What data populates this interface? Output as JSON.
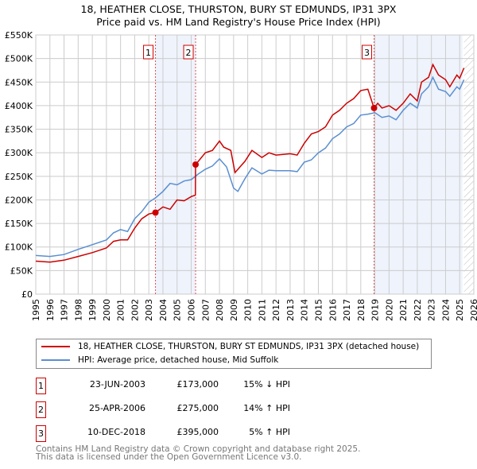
{
  "title": "18, HEATHER CLOSE, THURSTON, BURY ST EDMUNDS, IP31 3PX",
  "subtitle": "Price paid vs. HM Land Registry's House Price Index (HPI)",
  "chart_data": {
    "type": "line",
    "xlim": [
      1995,
      2026
    ],
    "ylim": [
      0,
      550000
    ],
    "yticks": [
      0,
      50000,
      100000,
      150000,
      200000,
      250000,
      300000,
      350000,
      400000,
      450000,
      500000,
      550000
    ],
    "ytick_labels": [
      "£0",
      "£50K",
      "£100K",
      "£150K",
      "£200K",
      "£250K",
      "£300K",
      "£350K",
      "£400K",
      "£450K",
      "£500K",
      "£550K"
    ],
    "xticks": [
      "1995",
      "1996",
      "1997",
      "1998",
      "1999",
      "2000",
      "2001",
      "2002",
      "2003",
      "2004",
      "2005",
      "2006",
      "2007",
      "2008",
      "2009",
      "2010",
      "2011",
      "2012",
      "2013",
      "2014",
      "2015",
      "2016",
      "2017",
      "2018",
      "2019",
      "2020",
      "2021",
      "2022",
      "2023",
      "2024",
      "2025",
      "2026"
    ],
    "grid": true,
    "colors": {
      "property": "#cc0000",
      "hpi": "#5b8fd0",
      "shade": "#eef3fc"
    },
    "shaded_ranges": [
      [
        2003.47,
        2006.31
      ],
      [
        2018.94,
        2025.2
      ]
    ],
    "hatched_from": 2025.3,
    "series": [
      {
        "name": "18, HEATHER CLOSE, THURSTON, BURY ST EDMUNDS, IP31 3PX (detached house)",
        "x": [
          1995,
          1996,
          1997,
          1998,
          1999,
          2000,
          2000.5,
          2001,
          2001.5,
          2002,
          2002.5,
          2003,
          2003.47,
          2004,
          2004.5,
          2005,
          2005.5,
          2006,
          2006.3,
          2006.31,
          2007,
          2007.5,
          2008,
          2008.3,
          2008.8,
          2009.1,
          2009.8,
          2010.3,
          2011,
          2011.5,
          2012,
          2013,
          2013.5,
          2014,
          2014.5,
          2015,
          2015.5,
          2016,
          2016.5,
          2017,
          2017.5,
          2018,
          2018.5,
          2018.94,
          2019.2,
          2019.5,
          2020,
          2020.5,
          2021,
          2021.5,
          2022,
          2022.3,
          2022.8,
          2023.1,
          2023.5,
          2024,
          2024.3,
          2024.8,
          2025,
          2025.3
        ],
        "values": [
          70000,
          68000,
          72000,
          80000,
          88000,
          98000,
          112000,
          115000,
          115000,
          140000,
          160000,
          170000,
          173000,
          185000,
          180000,
          200000,
          198000,
          207000,
          210000,
          275000,
          300000,
          305000,
          325000,
          312000,
          305000,
          258000,
          282000,
          305000,
          290000,
          300000,
          295000,
          298000,
          295000,
          320000,
          340000,
          345000,
          355000,
          380000,
          390000,
          405000,
          415000,
          432000,
          435000,
          395000,
          405000,
          395000,
          400000,
          390000,
          405000,
          425000,
          410000,
          450000,
          460000,
          487000,
          465000,
          455000,
          440000,
          465000,
          458000,
          480000
        ]
      },
      {
        "name": "HPI: Average price, detached house, Mid Suffolk",
        "x": [
          1995,
          1996,
          1997,
          1998,
          1999,
          2000,
          2000.5,
          2001,
          2001.5,
          2002,
          2002.5,
          2003,
          2003.5,
          2004,
          2004.5,
          2005,
          2005.5,
          2006,
          2006.5,
          2007,
          2007.5,
          2008,
          2008.5,
          2009,
          2009.3,
          2009.8,
          2010.3,
          2011,
          2011.5,
          2012,
          2013,
          2013.5,
          2014,
          2014.5,
          2015,
          2015.5,
          2016,
          2016.5,
          2017,
          2017.5,
          2018,
          2018.5,
          2019,
          2019.5,
          2020,
          2020.5,
          2021,
          2021.5,
          2022,
          2022.3,
          2022.8,
          2023.1,
          2023.5,
          2024,
          2024.3,
          2024.8,
          2025,
          2025.3
        ],
        "values": [
          82000,
          80000,
          84000,
          95000,
          105000,
          115000,
          130000,
          137000,
          133000,
          160000,
          175000,
          195000,
          205000,
          218000,
          235000,
          232000,
          240000,
          243000,
          255000,
          265000,
          272000,
          287000,
          270000,
          225000,
          218000,
          245000,
          268000,
          255000,
          263000,
          262000,
          262000,
          260000,
          280000,
          285000,
          300000,
          310000,
          330000,
          340000,
          355000,
          362000,
          380000,
          382000,
          385000,
          375000,
          378000,
          370000,
          390000,
          405000,
          395000,
          425000,
          440000,
          460000,
          435000,
          430000,
          420000,
          440000,
          435000,
          455000
        ]
      }
    ],
    "sales": [
      {
        "label": "1",
        "x": 2003.47,
        "value": 173000
      },
      {
        "label": "2",
        "x": 2006.31,
        "value": 275000
      },
      {
        "label": "3",
        "x": 2018.94,
        "value": 395000
      }
    ]
  },
  "legend": [
    {
      "label": "18, HEATHER CLOSE, THURSTON, BURY ST EDMUNDS, IP31 3PX (detached house)"
    },
    {
      "label": "HPI: Average price, detached house, Mid Suffolk"
    }
  ],
  "transactions": [
    {
      "num": "1",
      "date": "23-JUN-2003",
      "price": "£173,000",
      "hpi": "15% ↓ HPI"
    },
    {
      "num": "2",
      "date": "25-APR-2006",
      "price": "£275,000",
      "hpi": "14% ↑ HPI"
    },
    {
      "num": "3",
      "date": "10-DEC-2018",
      "price": "£395,000",
      "hpi": "5% ↑ HPI"
    }
  ],
  "footer": {
    "line1": "Contains HM Land Registry data © Crown copyright and database right 2025.",
    "line2": "This data is licensed under the Open Government Licence v3.0."
  }
}
